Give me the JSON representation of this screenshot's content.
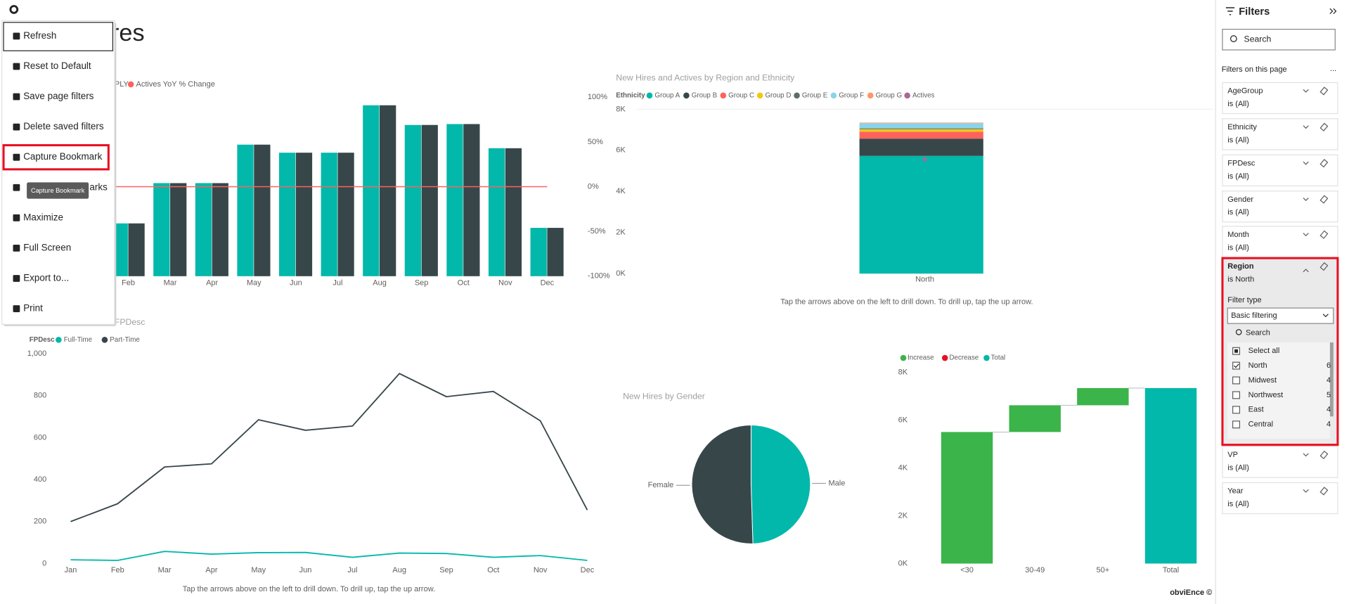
{
  "page_title_fragment": "res",
  "menu": {
    "items": [
      "Refresh",
      "Reset to Default",
      "Save page filters",
      "Delete saved filters",
      "Capture Bookmark",
      "arks",
      "Maximize",
      "Full Screen",
      "Export to...",
      "Print"
    ],
    "tooltip": "Capture Bookmark"
  },
  "chart_data": [
    {
      "type": "bar",
      "categories": [
        "Feb",
        "Mar",
        "Apr",
        "May",
        "Jun",
        "Jul",
        "Aug",
        "Sep",
        "Oct",
        "Nov",
        "Dec"
      ],
      "series": [
        {
          "color": "#01b8aa",
          "axis": "y2",
          "values": [
            -41,
            4,
            4,
            47,
            38,
            38,
            91,
            69,
            70,
            43,
            -46
          ]
        },
        {
          "name": "PLY",
          "color": "#374649",
          "axis": "y2",
          "values": [
            -41,
            4,
            4,
            47,
            38,
            38,
            91,
            69,
            70,
            43,
            -46
          ]
        },
        {
          "name": "Actives YoY % Change",
          "color": "#fd625e",
          "axis": "y2",
          "type": "line",
          "values": [
            0,
            0,
            0,
            0,
            0,
            0,
            0,
            0,
            0,
            0,
            0
          ]
        }
      ],
      "y2lim": [
        -100,
        100
      ],
      "y2ticks": [
        {
          "value": 100,
          "label": "100%"
        },
        {
          "value": 50,
          "label": "50%"
        },
        {
          "value": 0,
          "label": "0%"
        },
        {
          "value": -50,
          "label": "-50%"
        },
        {
          "value": -100,
          "label": "-100%"
        }
      ]
    },
    {
      "type": "stacked_bar",
      "title": "New Hires and Actives by Region and Ethnicity",
      "legend_title": "Ethnicity",
      "categories": [
        "North"
      ],
      "series": [
        {
          "name": "Group A",
          "color": "#01b8aa",
          "values": [
            5730
          ]
        },
        {
          "name": "Group B",
          "color": "#374649",
          "values": [
            840
          ]
        },
        {
          "name": "Group C",
          "color": "#fd625e",
          "values": [
            335
          ]
        },
        {
          "name": "Group D",
          "color": "#f2c80f",
          "values": [
            125
          ]
        },
        {
          "name": "Group E",
          "color": "#5f6b6d",
          "values": [
            40
          ]
        },
        {
          "name": "Group F",
          "color": "#8ad4eb",
          "values": [
            250
          ]
        },
        {
          "name": "Group G",
          "color": "#fe9666",
          "values": [
            30
          ]
        },
        {
          "name": "Actives",
          "color": "#a66999",
          "type": "scatter",
          "values": [
            5560
          ]
        }
      ],
      "ylim": [
        0,
        8000
      ],
      "yticks": [
        {
          "value": 0,
          "label": "0K"
        },
        {
          "value": 2000,
          "label": "2K"
        },
        {
          "value": 4000,
          "label": "4K"
        },
        {
          "value": 6000,
          "label": "6K"
        },
        {
          "value": 8000,
          "label": "8K"
        }
      ],
      "note": "Tap the arrows above on the left to drill down. To drill up, tap the up arrow."
    },
    {
      "type": "line",
      "title": "FPDesc",
      "legend_title": "FPDesc",
      "categories": [
        "Jan",
        "Feb",
        "Mar",
        "Apr",
        "May",
        "Jun",
        "Jul",
        "Aug",
        "Sep",
        "Oct",
        "Nov",
        "Dec"
      ],
      "series": [
        {
          "name": "Full-Time",
          "color": "#01b8aa",
          "values": [
            18,
            15,
            58,
            45,
            52,
            53,
            30,
            50,
            48,
            30,
            38,
            15
          ]
        },
        {
          "name": "Part-Time",
          "color": "#374649",
          "values": [
            200,
            285,
            460,
            475,
            685,
            635,
            655,
            905,
            795,
            820,
            680,
            255
          ]
        }
      ],
      "ylim": [
        0,
        1000
      ],
      "yticks": [
        0,
        200,
        400,
        600,
        800,
        {
          "value": 1000,
          "label": "1,000"
        }
      ],
      "note": "Tap the arrows above on the left to drill down. To drill up, tap the up arrow."
    },
    {
      "type": "pie",
      "title": "New Hires by Gender",
      "categories": [
        "Male",
        "Female"
      ],
      "values": [
        49.5,
        50.5
      ],
      "colors": [
        "#01b8aa",
        "#374649"
      ]
    },
    {
      "type": "waterfall",
      "legend": [
        {
          "name": "Increase",
          "color": "#3bb44a"
        },
        {
          "name": "Decrease",
          "color": "#e81123"
        },
        {
          "name": "Total",
          "color": "#01b8aa"
        }
      ],
      "categories": [
        "<30",
        "30-49",
        "50+",
        "Total"
      ],
      "values": [
        5510,
        1120,
        720,
        7350
      ],
      "kinds": [
        "Increase",
        "Increase",
        "Increase",
        "Total"
      ],
      "ylim": [
        0,
        8000
      ],
      "yticks": [
        {
          "value": 0,
          "label": "0K"
        },
        {
          "value": 2000,
          "label": "2K"
        },
        {
          "value": 4000,
          "label": "4K"
        },
        {
          "value": 6000,
          "label": "6K"
        },
        {
          "value": 8000,
          "label": "8K"
        }
      ]
    }
  ],
  "filters": {
    "title": "Filters",
    "search": "Search",
    "section": "Filters on this page",
    "more": "...",
    "cards": [
      {
        "name": "AgeGroup",
        "state": "is (All)"
      },
      {
        "name": "Ethnicity",
        "state": "is (All)"
      },
      {
        "name": "FPDesc",
        "state": "is (All)"
      },
      {
        "name": "Gender",
        "state": "is (All)"
      },
      {
        "name": "Month",
        "state": "is (All)"
      },
      {
        "name": "Region",
        "state": "is North"
      },
      {
        "name": "VP",
        "state": "is (All)"
      },
      {
        "name": "Year",
        "state": "is (All)"
      }
    ],
    "region": {
      "filter_type_label": "Filter type",
      "filter_type": "Basic filtering",
      "search": "Search",
      "select_all": "Select all",
      "items": [
        {
          "label": "North",
          "count": 6
        },
        {
          "label": "Midwest",
          "count": 4
        },
        {
          "label": "Northwest",
          "count": 5
        },
        {
          "label": "East",
          "count": 4
        },
        {
          "label": "Central",
          "count": 4
        }
      ]
    }
  },
  "footer": "obviEnce ©"
}
